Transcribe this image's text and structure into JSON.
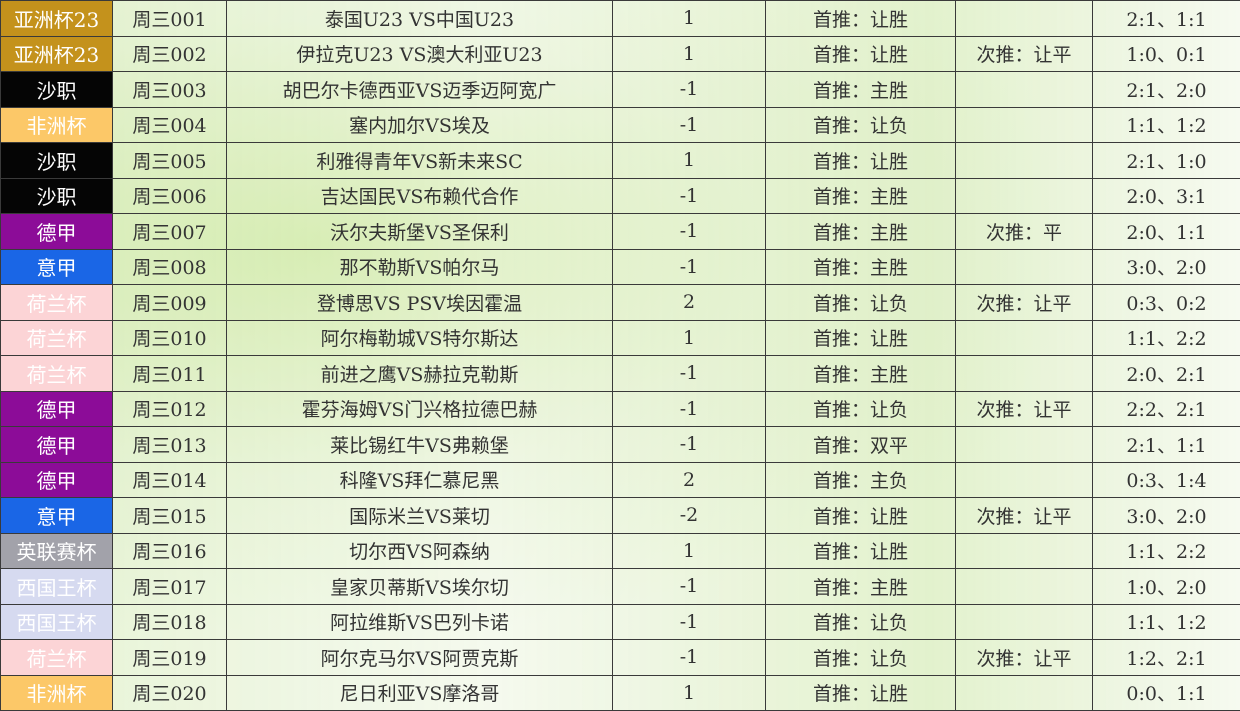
{
  "colors": {
    "亚洲杯23": "#c4921c",
    "沙职": "#050505",
    "非洲杯": "#fcc868",
    "德甲": "#8c0c98",
    "意甲": "#1a66e6",
    "荷兰杯": "#fcd4d6",
    "英联赛杯": "#a2a2aa",
    "西国王杯": "#d6daf0"
  },
  "rows": [
    {
      "league": "亚洲杯23",
      "code": "周三001",
      "match": "泰国U23 VS中国U23",
      "handicap": "1",
      "first": "首推：让胜",
      "second": "",
      "scores": "2:1、1:1"
    },
    {
      "league": "亚洲杯23",
      "code": "周三002",
      "match": "伊拉克U23 VS澳大利亚U23",
      "handicap": "1",
      "first": "首推：让胜",
      "second": "次推：让平",
      "scores": "1:0、0:1"
    },
    {
      "league": "沙职",
      "code": "周三003",
      "match": "胡巴尔卡德西亚VS迈季迈阿宽广",
      "handicap": "-1",
      "first": "首推：主胜",
      "second": "",
      "scores": "2:1、2:0"
    },
    {
      "league": "非洲杯",
      "code": "周三004",
      "match": "塞内加尔VS埃及",
      "handicap": "-1",
      "first": "首推：让负",
      "second": "",
      "scores": "1:1、1:2"
    },
    {
      "league": "沙职",
      "code": "周三005",
      "match": "利雅得青年VS新未来SC",
      "handicap": "1",
      "first": "首推：让胜",
      "second": "",
      "scores": "2:1、1:0"
    },
    {
      "league": "沙职",
      "code": "周三006",
      "match": "吉达国民VS布赖代合作",
      "handicap": "-1",
      "first": "首推：主胜",
      "second": "",
      "scores": "2:0、3:1"
    },
    {
      "league": "德甲",
      "code": "周三007",
      "match": "沃尔夫斯堡VS圣保利",
      "handicap": "-1",
      "first": "首推：主胜",
      "second": "次推：平",
      "scores": "2:0、1:1"
    },
    {
      "league": "意甲",
      "code": "周三008",
      "match": "那不勒斯VS帕尔马",
      "handicap": "-1",
      "first": "首推：主胜",
      "second": "",
      "scores": "3:0、2:0"
    },
    {
      "league": "荷兰杯",
      "code": "周三009",
      "match": "登博思VS PSV埃因霍温",
      "handicap": "2",
      "first": "首推：让负",
      "second": "次推：让平",
      "scores": "0:3、0:2"
    },
    {
      "league": "荷兰杯",
      "code": "周三010",
      "match": "阿尔梅勒城VS特尔斯达",
      "handicap": "1",
      "first": "首推：让胜",
      "second": "",
      "scores": "1:1、2:2"
    },
    {
      "league": "荷兰杯",
      "code": "周三011",
      "match": "前进之鹰VS赫拉克勒斯",
      "handicap": "-1",
      "first": "首推：主胜",
      "second": "",
      "scores": "2:0、2:1"
    },
    {
      "league": "德甲",
      "code": "周三012",
      "match": "霍芬海姆VS门兴格拉德巴赫",
      "handicap": "-1",
      "first": "首推：让负",
      "second": "次推：让平",
      "scores": "2:2、2:1"
    },
    {
      "league": "德甲",
      "code": "周三013",
      "match": "莱比锡红牛VS弗赖堡",
      "handicap": "-1",
      "first": "首推：双平",
      "second": "",
      "scores": "2:1、1:1"
    },
    {
      "league": "德甲",
      "code": "周三014",
      "match": "科隆VS拜仁慕尼黑",
      "handicap": "2",
      "first": "首推：主负",
      "second": "",
      "scores": "0:3、1:4"
    },
    {
      "league": "意甲",
      "code": "周三015",
      "match": "国际米兰VS莱切",
      "handicap": "-2",
      "first": "首推：让胜",
      "second": "次推：让平",
      "scores": "3:0、2:0"
    },
    {
      "league": "英联赛杯",
      "code": "周三016",
      "match": "切尔西VS阿森纳",
      "handicap": "1",
      "first": "首推：让胜",
      "second": "",
      "scores": "1:1、2:2"
    },
    {
      "league": "西国王杯",
      "code": "周三017",
      "match": "皇家贝蒂斯VS埃尔切",
      "handicap": "-1",
      "first": "首推：主胜",
      "second": "",
      "scores": "1:0、2:0"
    },
    {
      "league": "西国王杯",
      "code": "周三018",
      "match": "阿拉维斯VS巴列卡诺",
      "handicap": "-1",
      "first": "首推：让负",
      "second": "",
      "scores": "1:1、1:2"
    },
    {
      "league": "荷兰杯",
      "code": "周三019",
      "match": "阿尔克马尔VS阿贾克斯",
      "handicap": "-1",
      "first": "首推：让负",
      "second": "次推：让平",
      "scores": "1:2、2:1"
    },
    {
      "league": "非洲杯",
      "code": "周三020",
      "match": "尼日利亚VS摩洛哥",
      "handicap": "1",
      "first": "首推：让胜",
      "second": "",
      "scores": "0:0、1:1"
    }
  ]
}
